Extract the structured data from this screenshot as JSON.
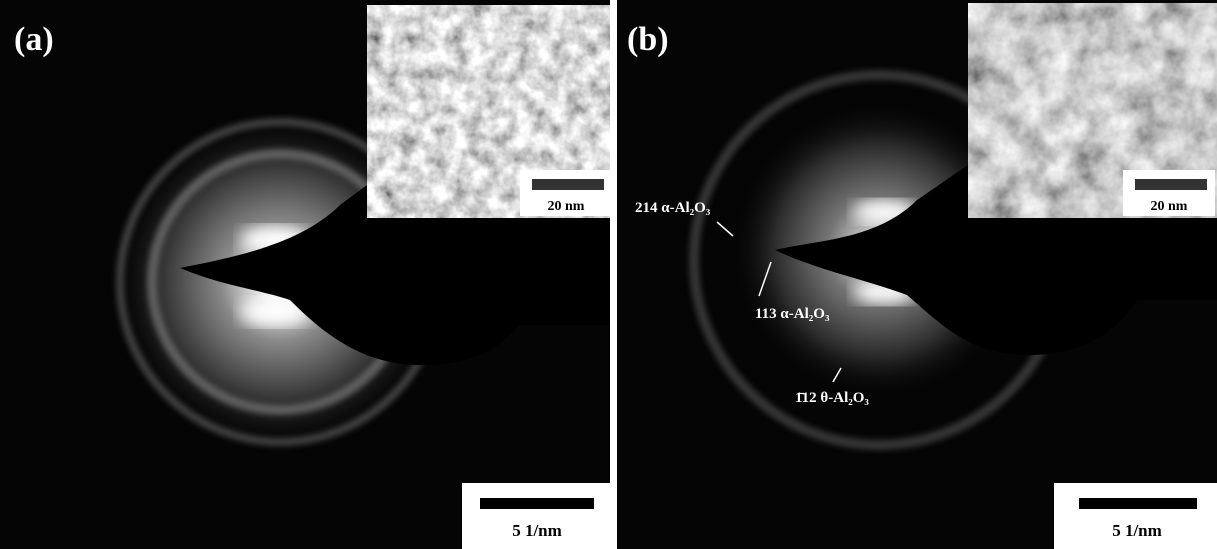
{
  "panels": [
    {
      "label": "(a)",
      "inset_scale": "20 nm",
      "scale": "5 1/nm"
    },
    {
      "label": "(b)",
      "inset_scale": "20 nm",
      "scale": "5 1/nm",
      "annotations": [
        "214 α-Al₂O₃",
        "113 α-Al₂O₃",
        "1̄12 θ-Al₂O₃"
      ]
    }
  ]
}
